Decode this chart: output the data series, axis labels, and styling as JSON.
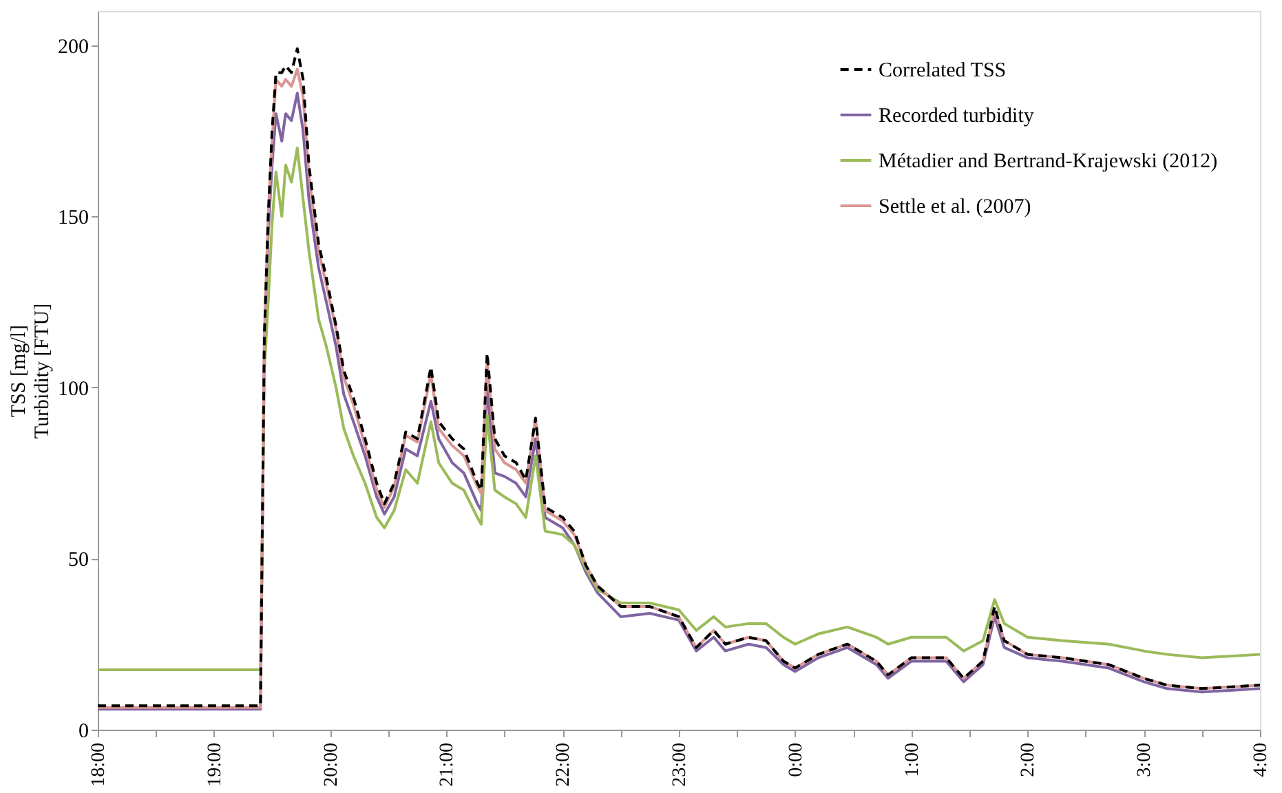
{
  "chart_data": {
    "type": "line",
    "ylabel": "TSS [mg/l]\nTurbidity [FTU]",
    "legend": "top right",
    "grid": false,
    "line_style": "solid",
    "marker": "none",
    "xlim": [
      "2000-01-01T18:00",
      "2000-01-02T04:00"
    ],
    "ylim": [
      0,
      210
    ],
    "yticks": [
      0,
      50,
      100,
      150,
      200
    ],
    "xticks": [
      {
        "value": "2000-01-01T18:00",
        "label": "18:00"
      },
      {
        "value": "2000-01-01T18:30",
        "label": null
      },
      {
        "value": "2000-01-01T19:00",
        "label": "19:00"
      },
      {
        "value": "2000-01-01T19:30",
        "label": null
      },
      {
        "value": "2000-01-01T20:00",
        "label": "20:00"
      },
      {
        "value": "2000-01-01T20:30",
        "label": null
      },
      {
        "value": "2000-01-01T21:00",
        "label": "21:00"
      },
      {
        "value": "2000-01-01T21:30",
        "label": null
      },
      {
        "value": "2000-01-01T22:00",
        "label": "22:00"
      },
      {
        "value": "2000-01-01T22:30",
        "label": null
      },
      {
        "value": "2000-01-01T23:00",
        "label": "23:00"
      },
      {
        "value": "2000-01-01T23:30",
        "label": null
      },
      {
        "value": "2000-01-02T00:00",
        "label": "0:00"
      },
      {
        "value": "2000-01-02T00:30",
        "label": null
      },
      {
        "value": "2000-01-02T01:00",
        "label": "1:00"
      },
      {
        "value": "2000-01-02T01:30",
        "label": null
      },
      {
        "value": "2000-01-02T02:00",
        "label": "2:00"
      },
      {
        "value": "2000-01-02T02:30",
        "label": null
      },
      {
        "value": "2000-01-02T03:00",
        "label": "3:00"
      },
      {
        "value": "2000-01-02T03:30",
        "label": null
      },
      {
        "value": "2000-01-02T04:00",
        "label": "4:00"
      }
    ],
    "x": [
      "2000-01-01T18:00",
      "2000-01-01T19:24",
      "2000-01-01T19:26",
      "2000-01-01T19:28",
      "2000-01-01T19:30",
      "2000-01-01T19:32",
      "2000-01-01T19:35",
      "2000-01-01T19:37",
      "2000-01-01T19:40",
      "2000-01-01T19:43",
      "2000-01-01T19:46",
      "2000-01-01T19:49",
      "2000-01-01T19:54",
      "2000-01-01T19:58",
      "2000-01-01T20:03",
      "2000-01-01T20:07",
      "2000-01-01T20:12",
      "2000-01-01T20:18",
      "2000-01-01T20:24",
      "2000-01-01T20:28",
      "2000-01-01T20:33",
      "2000-01-01T20:39",
      "2000-01-01T20:45",
      "2000-01-01T20:52",
      "2000-01-01T20:56",
      "2000-01-01T21:03",
      "2000-01-01T21:09",
      "2000-01-01T21:16",
      "2000-01-01T21:18",
      "2000-01-01T21:21",
      "2000-01-01T21:25",
      "2000-01-01T21:30",
      "2000-01-01T21:36",
      "2000-01-01T21:41",
      "2000-01-01T21:46",
      "2000-01-01T21:51",
      "2000-01-01T22:00",
      "2000-01-01T22:06",
      "2000-01-01T22:12",
      "2000-01-01T22:18",
      "2000-01-01T22:30",
      "2000-01-01T22:45",
      "2000-01-01T23:00",
      "2000-01-01T23:09",
      "2000-01-01T23:18",
      "2000-01-01T23:24",
      "2000-01-01T23:36",
      "2000-01-01T23:45",
      "2000-01-01T23:54",
      "2000-01-02T00:00",
      "2000-01-02T00:12",
      "2000-01-02T00:27",
      "2000-01-02T00:42",
      "2000-01-02T00:48",
      "2000-01-02T01:00",
      "2000-01-02T01:18",
      "2000-01-02T01:27",
      "2000-01-02T01:37",
      "2000-01-02T01:43",
      "2000-01-02T01:48",
      "2000-01-02T02:00",
      "2000-01-02T02:18",
      "2000-01-02T02:42",
      "2000-01-02T03:00",
      "2000-01-02T03:12",
      "2000-01-02T03:30",
      "2000-01-02T04:00"
    ],
    "series": [
      {
        "name": "Correlated TSS",
        "color": "#000000",
        "line_style": "dashed",
        "values": [
          7,
          7,
          115,
          150,
          175,
          192,
          192,
          194,
          192,
          199,
          190,
          165,
          142,
          132,
          118,
          105,
          97,
          85,
          72,
          66,
          72,
          87,
          85,
          106,
          90,
          85,
          82,
          72,
          70,
          110,
          85,
          80,
          78,
          73,
          91,
          65,
          62,
          58,
          48,
          42,
          36,
          36,
          33,
          24,
          29,
          25,
          27,
          26,
          20,
          18,
          22,
          25,
          20,
          16,
          21,
          21,
          15,
          20,
          36,
          26,
          22,
          21,
          19,
          15,
          13,
          12,
          13
        ]
      },
      {
        "name": "Recorded turbidity",
        "color": "#8064a2",
        "values": [
          6,
          6,
          112,
          145,
          165,
          180,
          172,
          180,
          178,
          186,
          175,
          155,
          135,
          125,
          112,
          98,
          90,
          80,
          68,
          63,
          68,
          82,
          80,
          96,
          85,
          78,
          75,
          66,
          64,
          100,
          75,
          74,
          72,
          68,
          85,
          62,
          59,
          54,
          46,
          40,
          33,
          34,
          32,
          23,
          27,
          23,
          25,
          24,
          19,
          17,
          21,
          24,
          19,
          15,
          20,
          20,
          14,
          19,
          33,
          24,
          21,
          20,
          18,
          14,
          12,
          11,
          12
        ]
      },
      {
        "name": "Métadier and Bertrand-Krajewski (2012)",
        "color": "#9bbb59",
        "values": [
          17.5,
          17.5,
          105,
          125,
          148,
          163,
          150,
          165,
          160,
          170,
          155,
          140,
          120,
          112,
          100,
          88,
          80,
          72,
          62,
          59,
          64,
          76,
          72,
          90,
          78,
          72,
          70,
          62,
          60,
          92,
          70,
          68,
          66,
          62,
          80,
          58,
          57,
          54,
          47,
          41,
          37,
          37,
          35,
          29,
          33,
          30,
          31,
          31,
          27,
          25,
          28,
          30,
          27,
          25,
          27,
          27,
          23,
          26,
          38,
          31,
          27,
          26,
          25,
          23,
          22,
          21,
          22
        ]
      },
      {
        "name": "Settle et al. (2007)",
        "color": "#d99694",
        "values": [
          6.5,
          6.5,
          115,
          150,
          172,
          190,
          188,
          190,
          188,
          193,
          185,
          162,
          140,
          130,
          117,
          103,
          95,
          83,
          70,
          65,
          71,
          86,
          84,
          104,
          88,
          83,
          80,
          71,
          69,
          108,
          82,
          78,
          76,
          72,
          91,
          64,
          61,
          57,
          48,
          42,
          36,
          36,
          33,
          24,
          29,
          25,
          27,
          26,
          20,
          18,
          22,
          25,
          20,
          16,
          21,
          21,
          15,
          20,
          35,
          26,
          22,
          21,
          19,
          15,
          13,
          12,
          13
        ]
      }
    ]
  }
}
